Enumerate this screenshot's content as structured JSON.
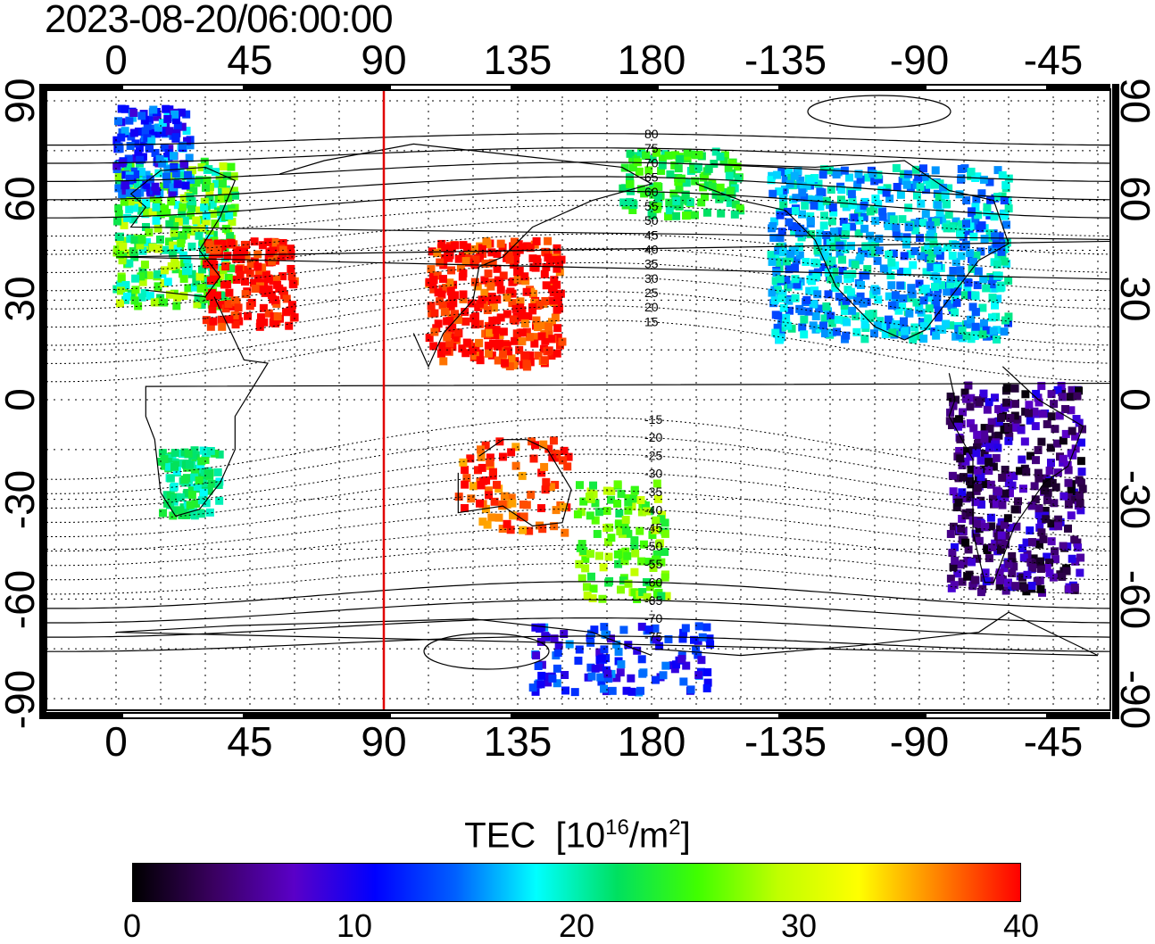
{
  "title": "2023-08-20/06:00:00",
  "axes": {
    "top_ticks": [
      "0",
      "45",
      "90",
      "135",
      "180",
      "-135",
      "-90",
      "-45"
    ],
    "bottom_ticks": [
      "0",
      "45",
      "90",
      "135",
      "180",
      "-135",
      "-90",
      "-45"
    ],
    "left_ticks": [
      "90",
      "60",
      "30",
      "0",
      "-30",
      "-60",
      "-90"
    ],
    "right_ticks": [
      "90",
      "60",
      "30",
      "0",
      "-30",
      "-60",
      "-90"
    ]
  },
  "magnetic_latitude_labels": [
    "80",
    "75",
    "70",
    "65",
    "60",
    "55",
    "50",
    "45",
    "40",
    "35",
    "30",
    "25",
    "20",
    "15",
    "-15",
    "-20",
    "-25",
    "-30",
    "-35",
    "-40",
    "-45",
    "-50",
    "-55",
    "-60",
    "-65",
    "-70",
    "-75"
  ],
  "marker_line": {
    "longitude": 90,
    "color": "#e00000"
  },
  "colorbar": {
    "title_main": "TEC",
    "title_unit_base": "[10",
    "title_unit_exp": "16",
    "title_unit_mid": "/m",
    "title_unit_exp2": "2",
    "title_unit_end": "]",
    "ticks": [
      "0",
      "10",
      "20",
      "30",
      "40"
    ],
    "range": [
      0,
      40
    ],
    "colors": [
      "#000000",
      "#3a0060",
      "#5a00c8",
      "#0000ff",
      "#0060ff",
      "#00ffff",
      "#00e060",
      "#40ff00",
      "#c0ff00",
      "#ffff00",
      "#ff8000",
      "#ff0000"
    ]
  },
  "tec_regions": [
    {
      "name": "europe",
      "value": 24
    },
    {
      "name": "north-atlantic-arctic",
      "value": 13
    },
    {
      "name": "middle-east",
      "value": 40
    },
    {
      "name": "east-asia",
      "value": 40
    },
    {
      "name": "north-america",
      "value": 17
    },
    {
      "name": "alaska",
      "value": 23
    },
    {
      "name": "south-america",
      "value": 5
    },
    {
      "name": "south-africa",
      "value": 21
    },
    {
      "name": "australia",
      "value": 38
    },
    {
      "name": "new-zealand",
      "value": 26
    },
    {
      "name": "antarctica",
      "value": 12
    }
  ]
}
